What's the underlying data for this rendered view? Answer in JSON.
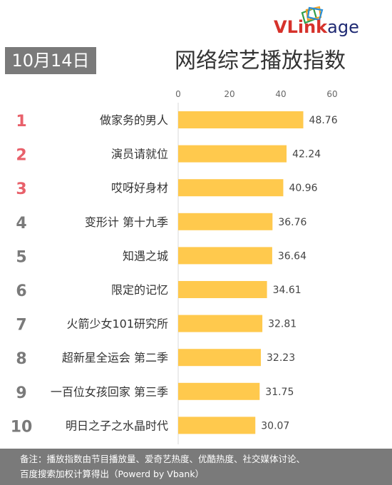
{
  "logo": {
    "part1": "VLink",
    "part2": "age"
  },
  "date": "10月14日",
  "title": "网络综艺播放指数",
  "chart_data": {
    "type": "bar",
    "orientation": "horizontal",
    "ranks": [
      "1",
      "2",
      "3",
      "4",
      "5",
      "6",
      "7",
      "8",
      "9",
      "10"
    ],
    "categories": [
      "做家务的男人",
      "演员请就位",
      "哎呀好身材",
      "变形计 第十九季",
      "知遇之城",
      "限定的记忆",
      "火箭少女101研究所",
      "超新星全运会 第二季",
      "一百位女孩回家 第三季",
      "明日之子之水晶时代"
    ],
    "values": [
      48.76,
      42.24,
      40.96,
      36.76,
      36.64,
      34.61,
      32.81,
      32.23,
      31.75,
      30.07
    ],
    "value_labels": [
      "48.76",
      "42.24",
      "40.96",
      "36.76",
      "36.64",
      "34.61",
      "32.81",
      "32.23",
      "31.75",
      "30.07"
    ],
    "xlim": [
      0,
      60
    ],
    "xticks": [
      "0",
      "20",
      "40",
      "60"
    ],
    "bar_color": "#ffc94d",
    "top_rank_color": "#e8606a",
    "rank_color": "#7a7a7a"
  },
  "footer": {
    "line1": "备注：播放指数由节目播放量、爱奇艺热度、优酷热度、社交媒体讨论、",
    "line2": "百度搜索加权计算得出（Powerd by Vbank）"
  }
}
